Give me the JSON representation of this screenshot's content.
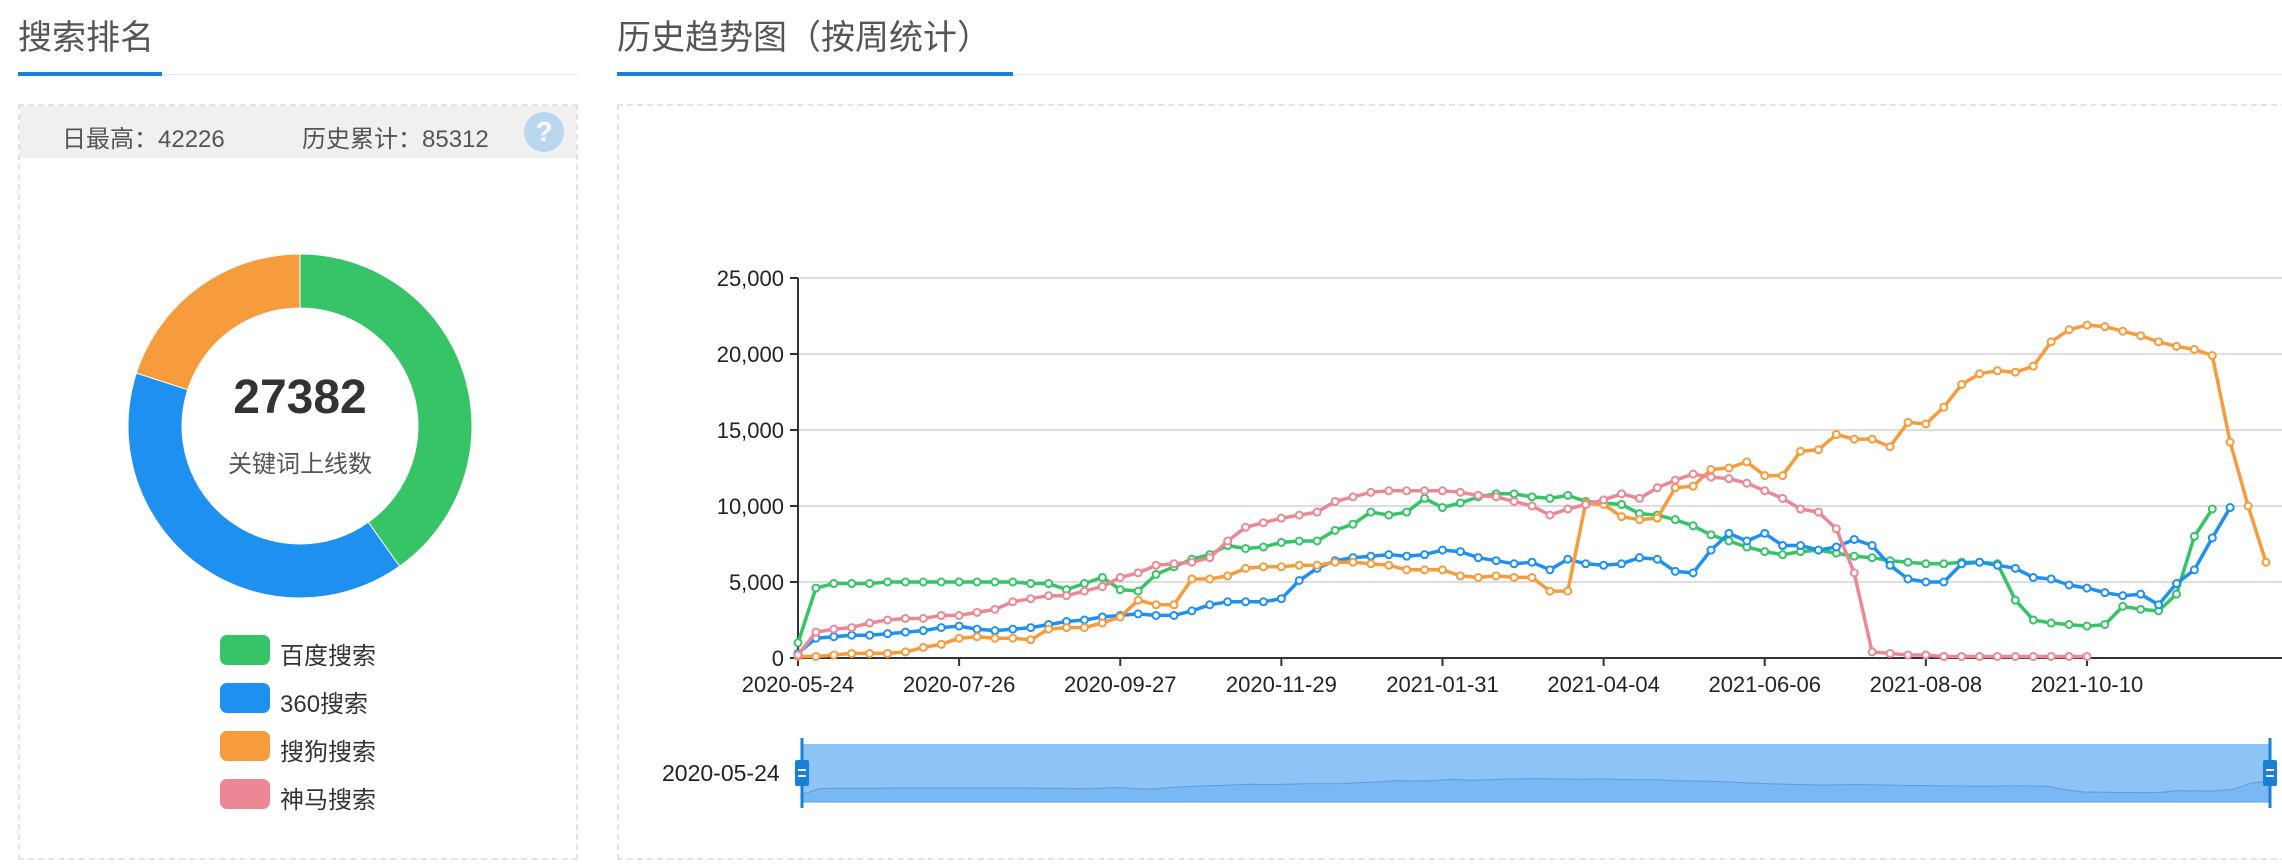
{
  "left_panel": {
    "title": "搜索排名",
    "stats": {
      "daily_max_label": "日最高：42226",
      "total_label": "历史累计：85312",
      "help_icon": "question-icon",
      "help_text": "?"
    },
    "donut": {
      "center_value": "27382",
      "center_label": "关键词上线数"
    },
    "legend": [
      {
        "label": "百度搜索",
        "color": "#36c466"
      },
      {
        "label": "360搜索",
        "color": "#1e90f0"
      },
      {
        "label": "搜狗搜索",
        "color": "#f79c3c"
      },
      {
        "label": "神马搜索",
        "color": "#ec8795"
      }
    ]
  },
  "right_panel": {
    "title": "历史趋势图（按周统计）",
    "zoom_start_label": "2020-05-24"
  },
  "chart_data": [
    {
      "type": "pie",
      "subtype": "donut",
      "categories": [
        "百度搜索",
        "360搜索",
        "搜狗搜索",
        "神马搜索"
      ],
      "values": [
        11000,
        10900,
        5482,
        0
      ],
      "colors": [
        "#36c466",
        "#1e90f0",
        "#f79c3c",
        "#ec8795"
      ]
    },
    {
      "type": "line",
      "ylim": [
        0,
        25000
      ],
      "yticks": [
        0,
        5000,
        10000,
        15000,
        20000,
        25000
      ],
      "ytick_labels": [
        "0",
        "5,000",
        "10,000",
        "15,000",
        "20,000",
        "25,000"
      ],
      "xtick_labels": [
        "2020-05-24",
        "2020-07-26",
        "2020-09-27",
        "2020-11-29",
        "2021-01-31",
        "2021-04-04",
        "2021-06-06",
        "2021-08-08",
        "2021-10-10"
      ],
      "xtick_indices": [
        0,
        9,
        18,
        27,
        36,
        45,
        54,
        63,
        72
      ],
      "grid": true,
      "series": [
        {
          "name": "百度搜索",
          "color": "#36c466",
          "values": [
            1000,
            4600,
            4900,
            4900,
            4900,
            5000,
            5000,
            5000,
            5000,
            5000,
            5000,
            5000,
            5000,
            4900,
            4900,
            4500,
            4900,
            5300,
            4500,
            4400,
            5500,
            6000,
            6500,
            6800,
            7400,
            7200,
            7300,
            7600,
            7700,
            7700,
            8400,
            8800,
            9600,
            9400,
            9600,
            10500,
            9900,
            10200,
            10600,
            10800,
            10800,
            10600,
            10500,
            10700,
            10300,
            10200,
            10100,
            9500,
            9400,
            9100,
            8700,
            8100,
            7700,
            7300,
            7000,
            6800,
            7000,
            7100,
            6900,
            6700,
            6600,
            6400,
            6300,
            6200,
            6200,
            6300,
            6300,
            6200,
            3800,
            2500,
            2300,
            2200,
            2100,
            2200,
            3400,
            3200,
            3100,
            4200,
            8000,
            9800
          ]
        },
        {
          "name": "360搜索",
          "color": "#1e90f0",
          "values": [
            300,
            1300,
            1400,
            1500,
            1500,
            1600,
            1700,
            1800,
            2000,
            2100,
            1900,
            1800,
            1900,
            2000,
            2200,
            2400,
            2500,
            2700,
            2800,
            2900,
            2800,
            2800,
            3100,
            3500,
            3700,
            3700,
            3700,
            3900,
            5100,
            5900,
            6400,
            6600,
            6700,
            6800,
            6700,
            6800,
            7100,
            7000,
            6600,
            6400,
            6200,
            6300,
            5800,
            6500,
            6200,
            6100,
            6200,
            6600,
            6500,
            5700,
            5600,
            7100,
            8200,
            7700,
            8200,
            7400,
            7400,
            7100,
            7300,
            7800,
            7400,
            6100,
            5200,
            5000,
            5000,
            6200,
            6300,
            6100,
            5900,
            5300,
            5200,
            4800,
            4600,
            4300,
            4100,
            4200,
            3500,
            4900,
            5800,
            7900,
            9900
          ]
        },
        {
          "name": "搜狗搜索",
          "color": "#f79c3c",
          "values": [
            100,
            100,
            200,
            300,
            300,
            300,
            400,
            700,
            900,
            1300,
            1400,
            1300,
            1300,
            1200,
            1900,
            2000,
            2000,
            2300,
            2700,
            3800,
            3500,
            3500,
            5200,
            5200,
            5400,
            5900,
            6000,
            6000,
            6100,
            6100,
            6300,
            6300,
            6200,
            6100,
            5800,
            5800,
            5800,
            5400,
            5300,
            5400,
            5300,
            5300,
            4400,
            4400,
            10200,
            10100,
            9300,
            9100,
            9200,
            11200,
            11300,
            12400,
            12500,
            12900,
            12000,
            12000,
            13600,
            13700,
            14700,
            14400,
            14400,
            13900,
            15500,
            15400,
            16500,
            18000,
            18700,
            18900,
            18800,
            19200,
            20800,
            21600,
            21900,
            21800,
            21500,
            21200,
            20800,
            20500,
            20300,
            19900,
            14200,
            10000,
            6300
          ]
        },
        {
          "name": "神马搜索",
          "color": "#ec8795",
          "values": [
            200,
            1700,
            1900,
            2000,
            2300,
            2500,
            2600,
            2600,
            2800,
            2800,
            3000,
            3200,
            3700,
            3900,
            4100,
            4100,
            4400,
            4700,
            5300,
            5600,
            6100,
            6200,
            6300,
            6600,
            7700,
            8600,
            8900,
            9200,
            9400,
            9600,
            10300,
            10600,
            10900,
            11000,
            11000,
            11000,
            11000,
            10900,
            10700,
            10600,
            10300,
            10000,
            9400,
            9800,
            10100,
            10400,
            10800,
            10500,
            11200,
            11700,
            12100,
            11900,
            11800,
            11500,
            11000,
            10500,
            9800,
            9600,
            8500,
            5600,
            400,
            300,
            200,
            200,
            100,
            100,
            100,
            100,
            100,
            100,
            100,
            100,
            100
          ]
        }
      ]
    }
  ]
}
